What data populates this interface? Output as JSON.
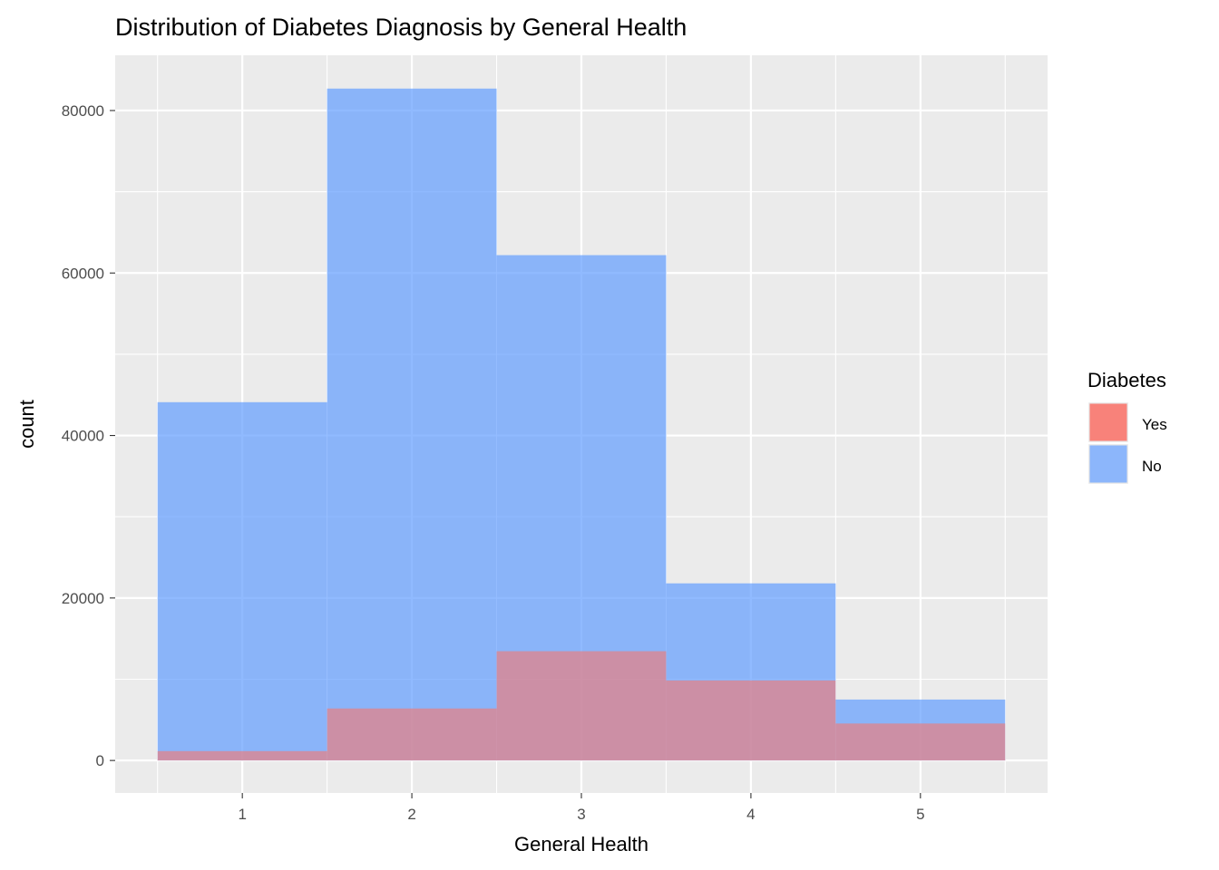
{
  "chart_data": {
    "type": "bar",
    "title": "Distribution of Diabetes Diagnosis by General Health",
    "xlabel": "General Health",
    "ylabel": "count",
    "categories": [
      1,
      2,
      3,
      4,
      5
    ],
    "x_ticks": [
      "1",
      "2",
      "3",
      "4",
      "5"
    ],
    "y_ticks": [
      "0",
      "20000",
      "40000",
      "60000",
      "80000"
    ],
    "y_tick_values": [
      0,
      20000,
      40000,
      60000,
      80000
    ],
    "xlim": [
      0.25,
      5.75
    ],
    "ylim": [
      -4000,
      86800
    ],
    "grid": true,
    "legend": {
      "title": "Diabetes",
      "placement": "right"
    },
    "series": [
      {
        "name": "Yes",
        "color": "#F8766D",
        "values": [
          1150,
          6400,
          13450,
          9850,
          4550
        ]
      },
      {
        "name": "No",
        "color": "#619CFF",
        "values": [
          44100,
          82700,
          62200,
          21800,
          7500
        ]
      }
    ]
  }
}
